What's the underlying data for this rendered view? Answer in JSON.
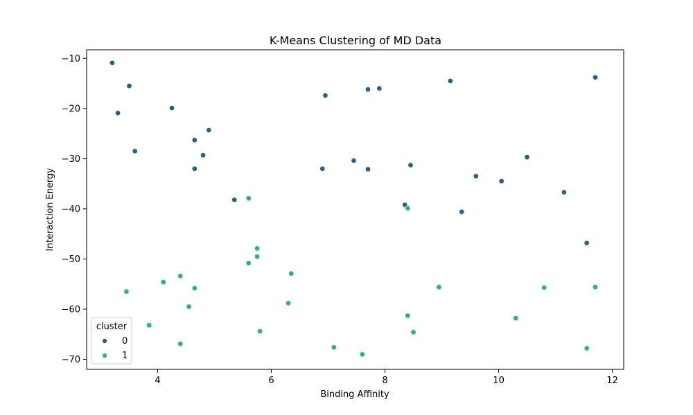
{
  "chart_data": {
    "type": "scatter",
    "title": "K-Means Clustering of MD Data",
    "xlabel": "Binding Affinity",
    "ylabel": "Interaction Energy",
    "xlim": [
      2.75,
      12.2
    ],
    "ylim": [
      -72,
      -8.3
    ],
    "xticks": [
      4,
      6,
      8,
      10,
      12
    ],
    "yticks": [
      -10,
      -20,
      -30,
      -40,
      -50,
      -60,
      -70
    ],
    "grid": false,
    "legend": {
      "title": "cluster",
      "placement": "lower-left"
    },
    "series": [
      {
        "name": "0",
        "color": "#2c6186",
        "points": [
          [
            3.2,
            -10.9
          ],
          [
            3.5,
            -15.5
          ],
          [
            3.3,
            -20.9
          ],
          [
            3.6,
            -28.5
          ],
          [
            4.25,
            -19.9
          ],
          [
            4.9,
            -24.3
          ],
          [
            4.65,
            -26.3
          ],
          [
            4.8,
            -29.3
          ],
          [
            4.65,
            -32.0
          ],
          [
            5.35,
            -38.2
          ],
          [
            6.95,
            -17.4
          ],
          [
            6.9,
            -32.0
          ],
          [
            7.45,
            -30.4
          ],
          [
            7.7,
            -16.2
          ],
          [
            7.9,
            -16.0
          ],
          [
            7.7,
            -32.1
          ],
          [
            8.35,
            -39.2
          ],
          [
            8.45,
            -31.3
          ],
          [
            9.15,
            -14.5
          ],
          [
            9.6,
            -33.5
          ],
          [
            9.35,
            -40.6
          ],
          [
            10.05,
            -34.5
          ],
          [
            10.5,
            -29.7
          ],
          [
            11.15,
            -36.7
          ],
          [
            11.55,
            -46.8
          ],
          [
            11.7,
            -13.8
          ]
        ]
      },
      {
        "name": "1",
        "color": "#2fb472",
        "points": [
          [
            3.45,
            -56.5
          ],
          [
            3.85,
            -63.2
          ],
          [
            4.1,
            -54.6
          ],
          [
            4.4,
            -53.4
          ],
          [
            4.4,
            -66.9
          ],
          [
            4.55,
            -59.5
          ],
          [
            4.65,
            -55.8
          ],
          [
            5.6,
            -37.9
          ],
          [
            5.75,
            -47.9
          ],
          [
            5.75,
            -49.5
          ],
          [
            5.6,
            -50.8
          ],
          [
            5.8,
            -64.4
          ],
          [
            6.35,
            -52.9
          ],
          [
            6.3,
            -58.8
          ],
          [
            7.1,
            -67.6
          ],
          [
            7.6,
            -69.0
          ],
          [
            8.4,
            -39.9
          ],
          [
            8.4,
            -61.3
          ],
          [
            8.5,
            -64.6
          ],
          [
            8.95,
            -55.6
          ],
          [
            10.3,
            -61.8
          ],
          [
            10.8,
            -55.7
          ],
          [
            11.55,
            -67.8
          ],
          [
            11.7,
            -55.6
          ]
        ]
      }
    ]
  }
}
